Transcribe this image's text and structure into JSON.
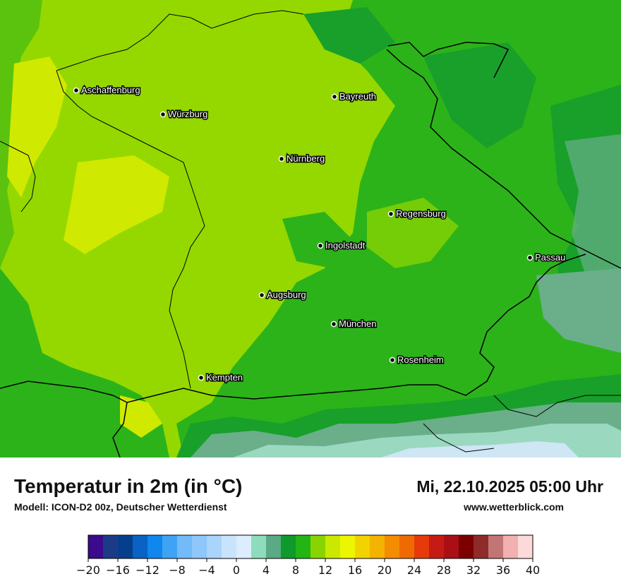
{
  "title": "Temperatur in 2m (in °C)",
  "subtitle": "Modell: ICON-D2 00z, Deutscher Wetterdienst",
  "datetime": "Mi, 22.10.2025 05:00 Uhr",
  "website": "www.wetterblick.com",
  "cities": [
    {
      "name": "Aschaffenburg"
    },
    {
      "name": "Würzburg"
    },
    {
      "name": "Bayreuth"
    },
    {
      "name": "Nürnberg"
    },
    {
      "name": "Regensburg"
    },
    {
      "name": "Ingolstadt"
    },
    {
      "name": "Passau"
    },
    {
      "name": "Augsburg"
    },
    {
      "name": "München"
    },
    {
      "name": "Rosenheim"
    },
    {
      "name": "Kempten"
    }
  ],
  "legend": {
    "min": -20,
    "max": 40,
    "step": 2,
    "tick_labels": [
      "−20",
      "−16",
      "−12",
      "−8",
      "−4",
      "0",
      "4",
      "8",
      "12",
      "16",
      "20",
      "24",
      "28",
      "32",
      "36",
      "40"
    ],
    "colors": [
      "#3a0b8c",
      "#1c3b86",
      "#053f8c",
      "#0a62c4",
      "#0f87ee",
      "#3ea3f5",
      "#72baf8",
      "#8fc6fb",
      "#a9d4fc",
      "#c8e4fd",
      "#dcedfe",
      "#8fdcbd",
      "#5aaa85",
      "#0f9a2d",
      "#22b514",
      "#89d400",
      "#cbe800",
      "#ecf600",
      "#f2d300",
      "#f3b300",
      "#f48c00",
      "#ef6a00",
      "#e63a0b",
      "#c61b14",
      "#a90f14",
      "#7d0000",
      "#8f2b2b",
      "#c27575",
      "#f2b0b0",
      "#fcdada"
    ]
  },
  "map_colors": {
    "t8_10": "#2cb31a",
    "t10_12": "#94d800",
    "t12_14": "#cfe900",
    "t6_8": "#18a02a",
    "t4_6": "#6aae8a",
    "t2_4": "#9ad8c0",
    "t0_2": "#cfe6f5",
    "border": "#000000"
  }
}
